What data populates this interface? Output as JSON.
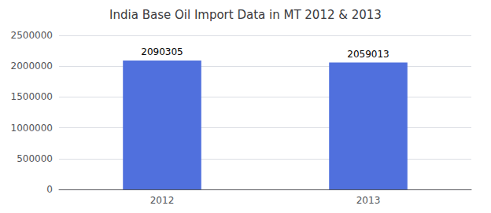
{
  "chart_data": {
    "type": "bar",
    "title": "India Base Oil Import Data in MT 2012 & 2013",
    "categories": [
      "2012",
      "2013"
    ],
    "values": [
      2090305,
      2059013
    ],
    "ylim": [
      0,
      2500000
    ],
    "yticks": [
      0,
      500000,
      1000000,
      1500000,
      2000000,
      2500000
    ],
    "grid": true,
    "data_labels": true
  }
}
